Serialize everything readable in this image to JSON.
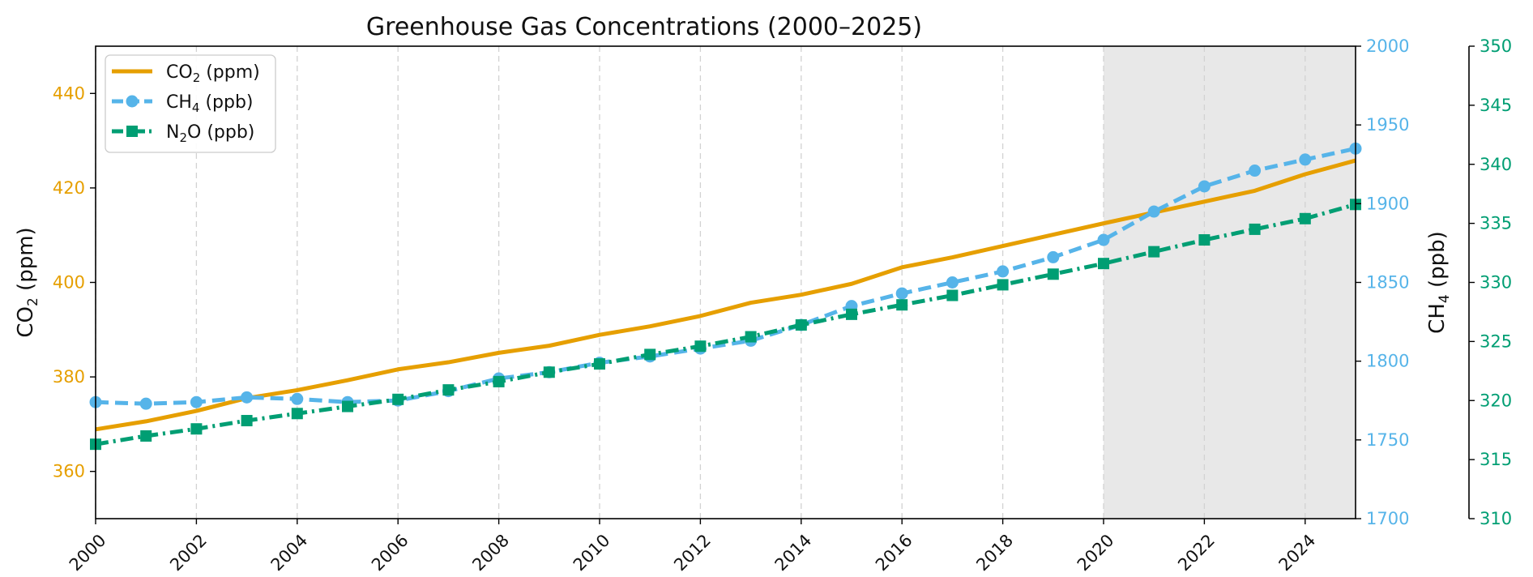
{
  "chart_data": {
    "type": "line",
    "title": "Greenhouse Gas Concentrations (2000–2025)",
    "x": [
      2000,
      2001,
      2002,
      2003,
      2004,
      2005,
      2006,
      2007,
      2008,
      2009,
      2010,
      2011,
      2012,
      2013,
      2014,
      2015,
      2016,
      2017,
      2018,
      2019,
      2020,
      2021,
      2022,
      2023,
      2024,
      2025
    ],
    "xlim": [
      2000,
      2025
    ],
    "xticks": [
      "2000",
      "2002",
      "2004",
      "2006",
      "2008",
      "2010",
      "2012",
      "2014",
      "2016",
      "2018",
      "2020",
      "2022",
      "2024"
    ],
    "shaded_region": [
      2020,
      2025
    ],
    "grid": "vertical dashed",
    "legend_position": "top-left",
    "axes": {
      "left": {
        "label_main": "CO",
        "label_sub": "2",
        "label_rest": " (ppm)",
        "ylim": [
          350,
          450
        ],
        "ticks": [
          "360",
          "380",
          "400",
          "420",
          "440"
        ],
        "color": "#E69F00"
      },
      "right1": {
        "label_main": "CH",
        "label_sub": "4",
        "label_rest": " (ppb)",
        "ylim": [
          1700,
          2000
        ],
        "ticks": [
          "1700",
          "1750",
          "1800",
          "1850",
          "1900",
          "1950",
          "2000"
        ],
        "color": "#56B4E9"
      },
      "right2": {
        "ylim": [
          310,
          350
        ],
        "ticks": [
          "310",
          "315",
          "320",
          "325",
          "330",
          "335",
          "340",
          "345",
          "350"
        ],
        "color": "#009E73"
      }
    },
    "series": [
      {
        "name_main": "CO",
        "name_sub": "2",
        "name_rest": " (ppm)",
        "axis": "left",
        "color": "#E69F00",
        "style": "solid",
        "marker": "none",
        "values": [
          368.9,
          370.6,
          372.8,
          375.5,
          377.2,
          379.3,
          381.6,
          383.1,
          385.1,
          386.6,
          388.9,
          390.7,
          392.9,
          395.7,
          397.4,
          399.7,
          403.2,
          405.3,
          407.7,
          410.1,
          412.5,
          414.8,
          417.1,
          419.4,
          422.9,
          425.8
        ]
      },
      {
        "name_main": "CH",
        "name_sub": "4",
        "name_rest": " (ppb)",
        "axis": "right1",
        "color": "#56B4E9",
        "style": "dashed",
        "marker": "circle",
        "values": [
          1774,
          1773,
          1774,
          1777,
          1776,
          1774,
          1775,
          1781,
          1789,
          1793,
          1799,
          1803,
          1808,
          1813,
          1823,
          1835,
          1843,
          1850,
          1857,
          1866,
          1877,
          1895,
          1911,
          1921,
          1928,
          1935
        ]
      },
      {
        "name_main": "N",
        "name_sub": "2",
        "name_rest": "O (ppb)",
        "axis": "right2",
        "color": "#009E73",
        "style": "dashdot",
        "marker": "square",
        "values": [
          316.3,
          317.0,
          317.6,
          318.3,
          318.9,
          319.5,
          320.1,
          320.9,
          321.6,
          322.4,
          323.1,
          323.9,
          324.6,
          325.4,
          326.4,
          327.3,
          328.1,
          328.9,
          329.8,
          330.7,
          331.6,
          332.6,
          333.6,
          334.5,
          335.4,
          336.6
        ]
      }
    ]
  }
}
